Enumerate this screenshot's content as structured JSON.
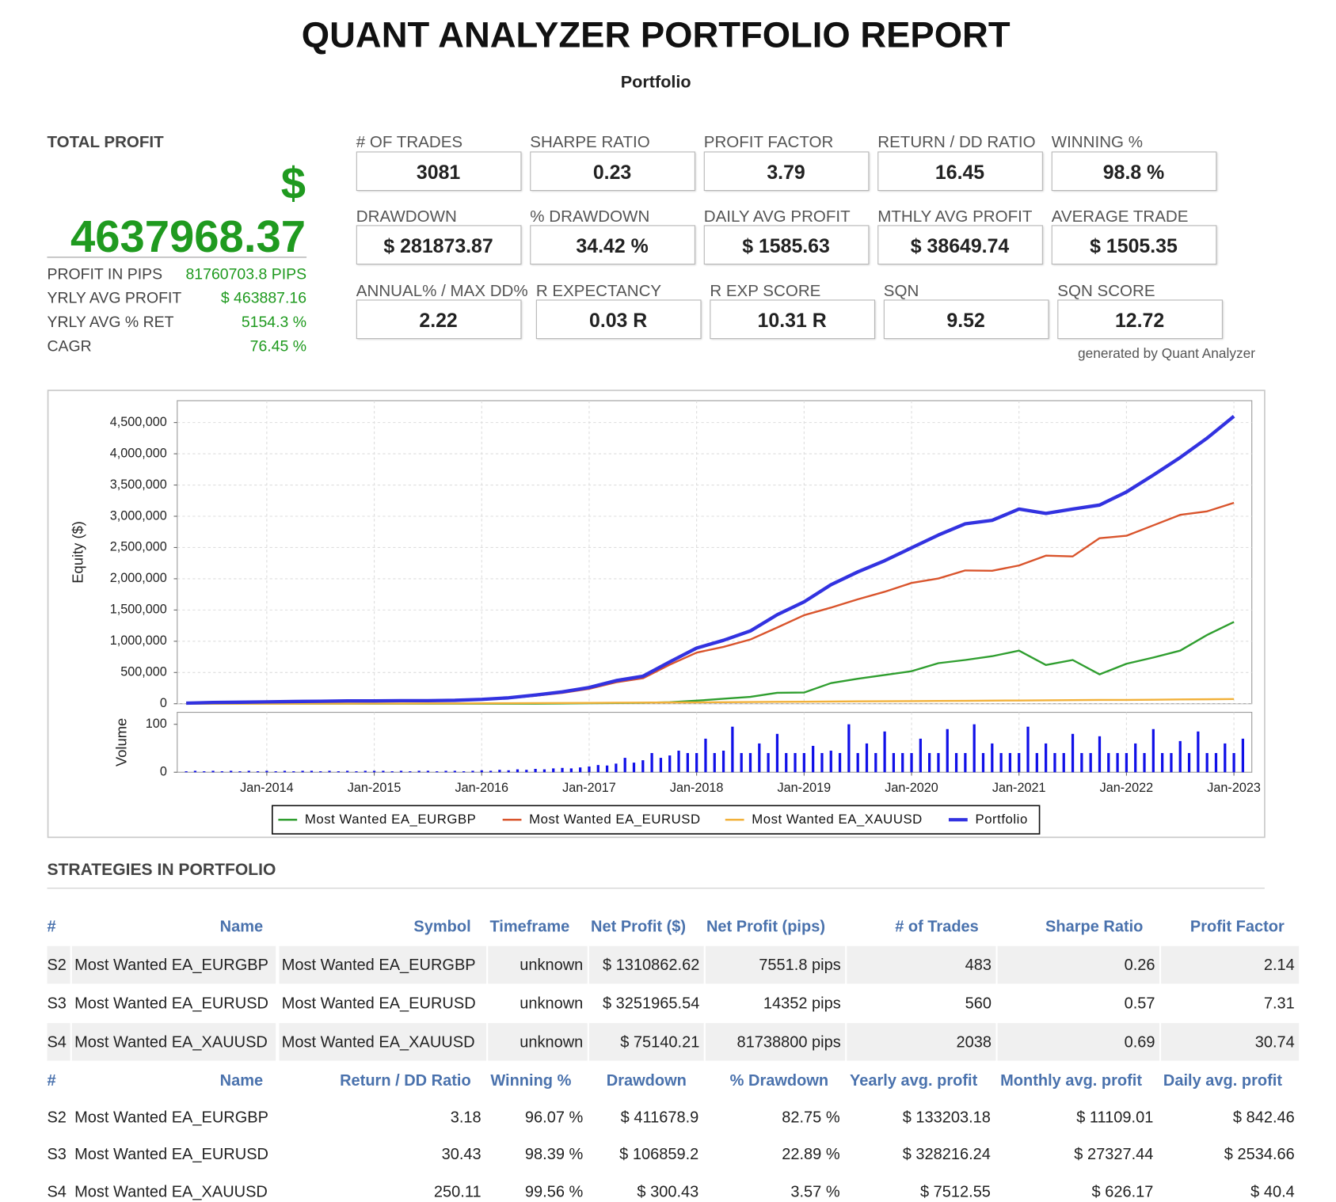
{
  "header": {
    "title": "QUANT ANALYZER PORTFOLIO REPORT",
    "subtitle": "Portfolio"
  },
  "total_profit": {
    "label": "TOTAL PROFIT",
    "currency": "$",
    "value": "4637968.37",
    "rows": [
      [
        "PROFIT IN PIPS",
        "81760703.8 PIPS"
      ],
      [
        "YRLY AVG PROFIT",
        "$ 463887.16"
      ],
      [
        "YRLY AVG % RET",
        "5154.3 %"
      ],
      [
        "CAGR",
        "76.45 %"
      ]
    ]
  },
  "stats": [
    {
      "label": "# OF TRADES",
      "value": "3081"
    },
    {
      "label": "SHARPE RATIO",
      "value": "0.23"
    },
    {
      "label": "PROFIT FACTOR",
      "value": "3.79"
    },
    {
      "label": "RETURN / DD RATIO",
      "value": "16.45"
    },
    {
      "label": "WINNING %",
      "value": "98.8 %"
    },
    {
      "label": "DRAWDOWN",
      "value": "$ 281873.87"
    },
    {
      "label": "% DRAWDOWN",
      "value": "34.42 %"
    },
    {
      "label": "DAILY AVG PROFIT",
      "value": "$ 1585.63"
    },
    {
      "label": "MTHLY AVG PROFIT",
      "value": "$ 38649.74"
    },
    {
      "label": "AVERAGE TRADE",
      "value": "$ 1505.35"
    },
    {
      "label": "ANNUAL% / MAX DD%",
      "value": "2.22"
    },
    {
      "label": "R EXPECTANCY",
      "value": "0.03 R"
    },
    {
      "label": "R EXP SCORE",
      "value": "10.31 R"
    },
    {
      "label": "SQN",
      "value": "9.52"
    },
    {
      "label": "SQN SCORE",
      "value": "12.72"
    }
  ],
  "generated_by": "generated by Quant Analyzer",
  "chart_data": {
    "type": "line",
    "ylabel": "Equity ($)",
    "grid": true,
    "legend": "bottom",
    "x": [
      "Apr-2013",
      "Jul-2013",
      "Oct-2013",
      "Jan-2014",
      "Apr-2014",
      "Jul-2014",
      "Oct-2014",
      "Jan-2015",
      "Apr-2015",
      "Jul-2015",
      "Oct-2015",
      "Jan-2016",
      "Apr-2016",
      "Jul-2016",
      "Oct-2016",
      "Jan-2017",
      "Apr-2017",
      "Jul-2017",
      "Oct-2017",
      "Jan-2018",
      "Apr-2018",
      "Jul-2018",
      "Oct-2018",
      "Jan-2019",
      "Apr-2019",
      "Jul-2019",
      "Oct-2019",
      "Jan-2020",
      "Apr-2020",
      "Jul-2020",
      "Oct-2020",
      "Jan-2021",
      "Apr-2021",
      "Jul-2021",
      "Oct-2021",
      "Jan-2022",
      "Apr-2022",
      "Jul-2022",
      "Oct-2022",
      "Jan-2023"
    ],
    "xlim": [
      "Mar-2013",
      "Mar-2023"
    ],
    "xticks": [
      "Jan-2014",
      "Jan-2015",
      "Jan-2016",
      "Jan-2017",
      "Jan-2018",
      "Jan-2019",
      "Jan-2020",
      "Jan-2021",
      "Jan-2022",
      "Jan-2023"
    ],
    "ylim": [
      0,
      4850000
    ],
    "yticks": [
      0,
      {
        "value": 500000,
        "label": "500,000"
      },
      {
        "value": 1000000,
        "label": "1,000,000"
      },
      {
        "value": 1500000,
        "label": "1,500,000"
      },
      {
        "value": 2000000,
        "label": "2,000,000"
      },
      {
        "value": 2500000,
        "label": "2,500,000"
      },
      {
        "value": 3000000,
        "label": "3,000,000"
      },
      {
        "value": 3500000,
        "label": "3,500,000"
      },
      {
        "value": 4000000,
        "label": "4,000,000"
      },
      {
        "value": 4500000,
        "label": "4,500,000"
      }
    ],
    "series": [
      {
        "name": "Most Wanted EA_EURGBP",
        "color": "#2f9e2f",
        "values": [
          0,
          0,
          0,
          0,
          0,
          0,
          0,
          0,
          0,
          0,
          0,
          0,
          0,
          2000,
          4000,
          8000,
          12000,
          15000,
          25000,
          50000,
          80000,
          110000,
          175000,
          180000,
          330000,
          400000,
          460000,
          520000,
          650000,
          700000,
          760000,
          850000,
          620000,
          700000,
          470000,
          640000,
          740000,
          850000,
          1100000,
          1310000
        ]
      },
      {
        "name": "Most Wanted EA_EURUSD",
        "color": "#d9542c",
        "values": [
          10000,
          20000,
          24000,
          28500,
          33000,
          37500,
          42000,
          41500,
          46000,
          45000,
          49000,
          63000,
          87000,
          128000,
          174000,
          238000,
          342000,
          407000,
          625000,
          818000,
          910000,
          1027000,
          1220000,
          1417000,
          1539000,
          1672000,
          1792000,
          1933000,
          2005000,
          2133000,
          2128000,
          2213000,
          2370000,
          2358000,
          2650000,
          2688000,
          2855000,
          3022000,
          3079000,
          3215000
        ]
      },
      {
        "name": "Most Wanted EA_XAUUSD",
        "color": "#f2b13a",
        "values": [
          0,
          0,
          1000,
          1500,
          2000,
          2500,
          3000,
          3500,
          4000,
          5000,
          6000,
          7000,
          8000,
          10000,
          12000,
          14000,
          16000,
          18000,
          20000,
          22000,
          25000,
          28000,
          30000,
          33000,
          36000,
          38000,
          40000,
          42000,
          45000,
          47000,
          50000,
          52000,
          55000,
          57000,
          60000,
          62000,
          65000,
          68000,
          71000,
          75000
        ]
      },
      {
        "name": "Portfolio",
        "color": "#3232e0",
        "values": [
          10000,
          20000,
          25000,
          30000,
          35000,
          40000,
          45000,
          45000,
          50000,
          50000,
          55000,
          70000,
          95000,
          140000,
          190000,
          260000,
          370000,
          440000,
          670000,
          890000,
          1015000,
          1165000,
          1425000,
          1630000,
          1905000,
          2110000,
          2290000,
          2495000,
          2700000,
          2880000,
          2935000,
          3115000,
          3045000,
          3115000,
          3180000,
          3390000,
          3660000,
          3940000,
          4250000,
          4600000
        ]
      }
    ],
    "volume": {
      "label": "Volume",
      "color": "#1010e8",
      "ylim": [
        0,
        125
      ],
      "yticks": [
        0,
        100
      ],
      "x": [
        "Apr-2013",
        "May-2013",
        "Jun-2013",
        "Jul-2013",
        "Aug-2013",
        "Sep-2013",
        "Oct-2013",
        "Nov-2013",
        "Dec-2013",
        "Jan-2014",
        "Feb-2014",
        "Mar-2014",
        "Apr-2014",
        "May-2014",
        "Jun-2014",
        "Jul-2014",
        "Aug-2014",
        "Sep-2014",
        "Oct-2014",
        "Nov-2014",
        "Dec-2014",
        "Jan-2015",
        "Feb-2015",
        "Mar-2015",
        "Apr-2015",
        "May-2015",
        "Jun-2015",
        "Jul-2015",
        "Aug-2015",
        "Sep-2015",
        "Oct-2015",
        "Nov-2015",
        "Dec-2015",
        "Jan-2016",
        "Feb-2016",
        "Mar-2016",
        "Apr-2016",
        "May-2016",
        "Jun-2016",
        "Jul-2016",
        "Aug-2016",
        "Sep-2016",
        "Oct-2016",
        "Nov-2016",
        "Dec-2016",
        "Jan-2017",
        "Feb-2017",
        "Mar-2017",
        "Apr-2017",
        "May-2017",
        "Jun-2017",
        "Jul-2017",
        "Aug-2017",
        "Sep-2017",
        "Oct-2017",
        "Nov-2017",
        "Dec-2017",
        "Jan-2018",
        "Feb-2018",
        "Mar-2018",
        "Apr-2018",
        "May-2018",
        "Jun-2018",
        "Jul-2018",
        "Aug-2018",
        "Sep-2018",
        "Oct-2018",
        "Nov-2018",
        "Dec-2018",
        "Jan-2019",
        "Feb-2019",
        "Mar-2019",
        "Apr-2019",
        "May-2019",
        "Jun-2019",
        "Jul-2019",
        "Aug-2019",
        "Sep-2019",
        "Oct-2019",
        "Nov-2019",
        "Dec-2019",
        "Jan-2020",
        "Feb-2020",
        "Mar-2020",
        "Apr-2020",
        "May-2020",
        "Jun-2020",
        "Jul-2020",
        "Aug-2020",
        "Sep-2020",
        "Oct-2020",
        "Nov-2020",
        "Dec-2020",
        "Jan-2021",
        "Feb-2021",
        "Mar-2021",
        "Apr-2021",
        "May-2021",
        "Jun-2021",
        "Jul-2021",
        "Aug-2021",
        "Sep-2021",
        "Oct-2021",
        "Nov-2021",
        "Dec-2021",
        "Jan-2022",
        "Feb-2022",
        "Mar-2022",
        "Apr-2022",
        "May-2022",
        "Jun-2022",
        "Jul-2022",
        "Aug-2022",
        "Sep-2022",
        "Oct-2022",
        "Nov-2022",
        "Dec-2022",
        "Jan-2023",
        "Feb-2023"
      ],
      "values": [
        2,
        3,
        2,
        3,
        2,
        3,
        2,
        3,
        2,
        3,
        2,
        3,
        2,
        3,
        3,
        2,
        3,
        2,
        3,
        2,
        3,
        3,
        3,
        2,
        3,
        2,
        3,
        3,
        2,
        3,
        3,
        2,
        3,
        4,
        3,
        5,
        4,
        6,
        5,
        7,
        6,
        8,
        9,
        8,
        10,
        12,
        15,
        14,
        18,
        30,
        20,
        25,
        40,
        30,
        35,
        45,
        40,
        40,
        70,
        40,
        45,
        95,
        40,
        40,
        60,
        40,
        80,
        40,
        40,
        40,
        55,
        40,
        45,
        40,
        100,
        40,
        60,
        40,
        85,
        40,
        40,
        40,
        70,
        40,
        40,
        90,
        40,
        40,
        100,
        40,
        60,
        40,
        40,
        40,
        95,
        40,
        60,
        40,
        40,
        80,
        40,
        40,
        75,
        40,
        40,
        40,
        60,
        40,
        90,
        40,
        40,
        65,
        40,
        85,
        40,
        40,
        60,
        40,
        70
      ]
    }
  },
  "strategies": {
    "title": "STRATEGIES IN PORTFOLIO",
    "table1": {
      "columns": [
        "#",
        "Name",
        "Symbol",
        "Timeframe",
        "Net Profit ($)",
        "Net Profit (pips)",
        "# of Trades",
        "Sharpe Ratio",
        "Profit Factor"
      ],
      "rows": [
        [
          "S2",
          "Most Wanted EA_EURGBP",
          "Most Wanted EA_EURGBP",
          "unknown",
          "$ 1310862.62",
          "7551.8 pips",
          "483",
          "0.26",
          "2.14"
        ],
        [
          "S3",
          "Most Wanted EA_EURUSD",
          "Most Wanted EA_EURUSD",
          "unknown",
          "$ 3251965.54",
          "14352 pips",
          "560",
          "0.57",
          "7.31"
        ],
        [
          "S4",
          "Most Wanted EA_XAUUSD",
          "Most Wanted EA_XAUUSD",
          "unknown",
          "$ 75140.21",
          "81738800 pips",
          "2038",
          "0.69",
          "30.74"
        ]
      ]
    },
    "table2": {
      "columns": [
        "#",
        "Name",
        "Return / DD Ratio",
        "Winning %",
        "Drawdown",
        "% Drawdown",
        "Yearly avg. profit",
        "Monthly avg. profit",
        "Daily avg. profit"
      ],
      "rows": [
        [
          "S2",
          "Most Wanted EA_EURGBP",
          "3.18",
          "96.07 %",
          "$ 411678.9",
          "82.75 %",
          "$ 133203.18",
          "$ 11109.01",
          "$ 842.46"
        ],
        [
          "S3",
          "Most Wanted EA_EURUSD",
          "30.43",
          "98.39 %",
          "$ 106859.2",
          "22.89 %",
          "$ 328216.24",
          "$ 27327.44",
          "$ 2534.66"
        ],
        [
          "S4",
          "Most Wanted EA_XAUUSD",
          "250.11",
          "99.56 %",
          "$ 300.43",
          "3.57 %",
          "$ 7512.55",
          "$ 626.17",
          "$ 40.4"
        ]
      ]
    }
  }
}
